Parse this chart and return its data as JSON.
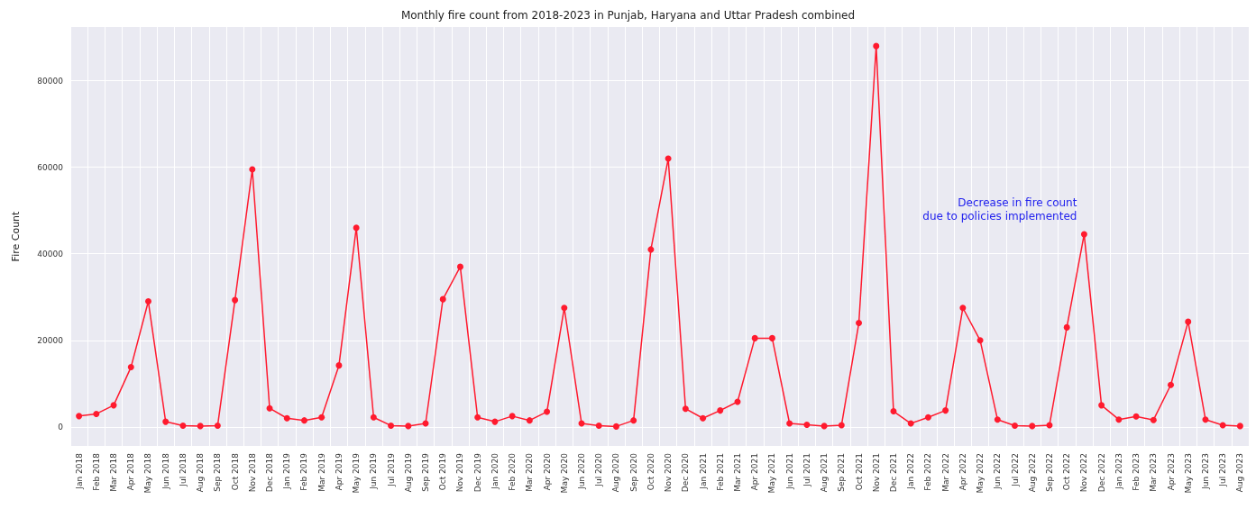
{
  "chart_data": {
    "type": "line",
    "title": "Monthly fire count from 2018-2023 in Punjab, Haryana and Uttar Pradesh combined",
    "ylabel": "Fire Count",
    "categories": [
      "Jan 2018",
      "Feb 2018",
      "Mar 2018",
      "Apr 2018",
      "May 2018",
      "Jun 2018",
      "Jul 2018",
      "Aug 2018",
      "Sep 2018",
      "Oct 2018",
      "Nov 2018",
      "Dec 2018",
      "Jan 2019",
      "Feb 2019",
      "Mar 2019",
      "Apr 2019",
      "May 2019",
      "Jun 2019",
      "Jul 2019",
      "Aug 2019",
      "Sep 2019",
      "Oct 2019",
      "Nov 2019",
      "Dec 2019",
      "Jan 2020",
      "Feb 2020",
      "Mar 2020",
      "Apr 2020",
      "May 2020",
      "Jun 2020",
      "Jul 2020",
      "Aug 2020",
      "Sep 2020",
      "Oct 2020",
      "Nov 2020",
      "Dec 2020",
      "Jan 2021",
      "Feb 2021",
      "Mar 2021",
      "Apr 2021",
      "May 2021",
      "Jun 2021",
      "Jul 2021",
      "Aug 2021",
      "Sep 2021",
      "Oct 2021",
      "Nov 2021",
      "Dec 2021",
      "Jan 2022",
      "Feb 2022",
      "Mar 2022",
      "Apr 2022",
      "May 2022",
      "Jun 2022",
      "Jul 2022",
      "Aug 2022",
      "Sep 2022",
      "Oct 2022",
      "Nov 2022",
      "Dec 2022",
      "Jan 2023",
      "Feb 2023",
      "Mar 2023",
      "Apr 2023",
      "May 2023",
      "Jun 2023",
      "Jul 2023",
      "Aug 2023"
    ],
    "series": [
      {
        "color": "#ff1a2e",
        "values": [
          2500,
          3000,
          5000,
          13800,
          29000,
          1200,
          300,
          200,
          300,
          29300,
          59500,
          4300,
          2000,
          1500,
          2200,
          14200,
          46000,
          2200,
          300,
          200,
          800,
          29500,
          37000,
          2200,
          1200,
          2500,
          1500,
          3500,
          27500,
          800,
          300,
          100,
          1500,
          41000,
          62000,
          4200,
          2000,
          3800,
          5800,
          20500,
          20500,
          800,
          500,
          200,
          400,
          24000,
          88000,
          3600,
          800,
          2200,
          3800,
          27500,
          20000,
          1700,
          300,
          200,
          400,
          23000,
          44500,
          5000,
          1700,
          2400,
          1600,
          9700,
          24300,
          1700,
          400,
          200
        ]
      }
    ],
    "ylim": [
      -4400,
      92400
    ],
    "yticks": [
      0,
      20000,
      40000,
      60000,
      80000
    ],
    "annotations": [
      {
        "text": "Decrease in fire count\ndue to policies implemented",
        "x": "Nov 2022",
        "y": 44500
      }
    ],
    "grid": true,
    "marker": "circle",
    "line_style": "solid"
  }
}
